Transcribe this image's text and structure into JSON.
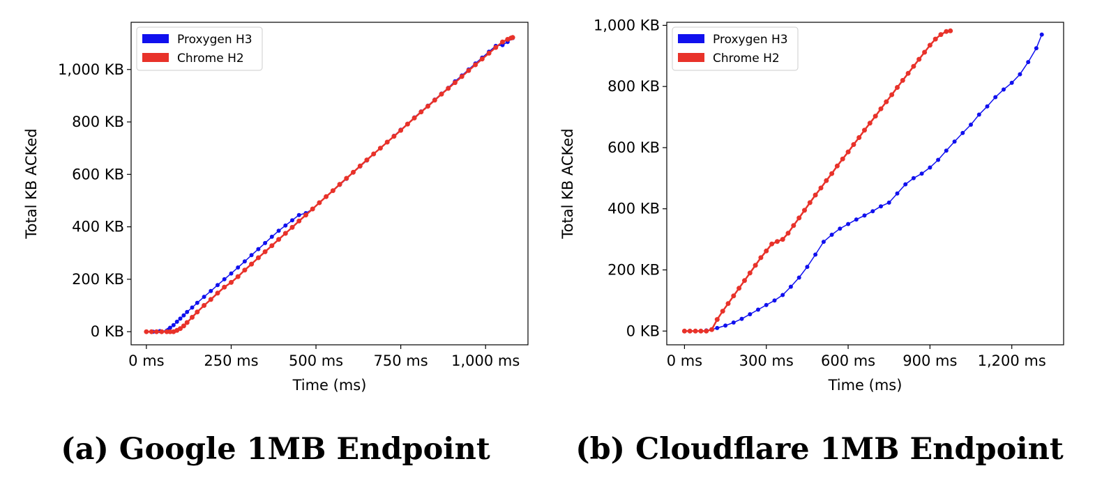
{
  "captions": {
    "a": "(a) Google 1MB Endpoint",
    "b": "(b) Cloudflare 1MB Endpoint"
  },
  "colors": {
    "h3": "#1010ee",
    "h2": "#e8322a"
  },
  "chart_data": [
    {
      "type": "scatter",
      "title": "",
      "xlabel": "Time (ms)",
      "ylabel": "Total KB ACKed",
      "xlim": [
        -45,
        1125
      ],
      "ylim": [
        -50,
        1180
      ],
      "xticks": [
        0,
        250,
        500,
        750,
        1000
      ],
      "xtick_labels": [
        "0 ms",
        "250 ms",
        "500 ms",
        "750 ms",
        "1,000 ms"
      ],
      "yticks": [
        0,
        200,
        400,
        600,
        800,
        1000
      ],
      "ytick_labels": [
        "0 KB",
        "200 KB",
        "400 KB",
        "600 KB",
        "800 KB",
        "1,000 KB"
      ],
      "grid": false,
      "legend_position": "top-left",
      "series": [
        {
          "name": "Proxygen H3",
          "color": "#1010ee",
          "x": [
            0,
            20,
            40,
            60,
            65,
            70,
            80,
            90,
            100,
            110,
            120,
            135,
            150,
            170,
            190,
            210,
            230,
            250,
            270,
            290,
            310,
            330,
            350,
            370,
            390,
            410,
            430,
            450,
            470,
            490,
            510,
            530,
            550,
            570,
            590,
            610,
            630,
            650,
            670,
            690,
            710,
            730,
            750,
            770,
            790,
            810,
            830,
            850,
            870,
            890,
            910,
            930,
            950,
            970,
            990,
            1010,
            1030,
            1050,
            1065,
            1080
          ],
          "y": [
            0,
            0,
            2,
            4,
            8,
            15,
            25,
            38,
            50,
            62,
            75,
            92,
            110,
            133,
            155,
            178,
            200,
            222,
            245,
            268,
            292,
            315,
            338,
            362,
            385,
            405,
            425,
            445,
            452,
            468,
            492,
            515,
            538,
            560,
            583,
            607,
            630,
            653,
            677,
            700,
            723,
            747,
            770,
            793,
            817,
            840,
            862,
            885,
            908,
            930,
            955,
            977,
            1000,
            1023,
            1045,
            1068,
            1090,
            1093,
            1105,
            1120
          ]
        },
        {
          "name": "Chrome H2",
          "color": "#e8322a",
          "x": [
            0,
            15,
            30,
            45,
            60,
            70,
            80,
            90,
            100,
            110,
            120,
            135,
            150,
            170,
            190,
            210,
            230,
            250,
            270,
            290,
            310,
            330,
            350,
            370,
            390,
            410,
            430,
            450,
            470,
            490,
            510,
            530,
            550,
            570,
            590,
            610,
            630,
            650,
            670,
            690,
            710,
            730,
            750,
            770,
            790,
            810,
            830,
            850,
            870,
            890,
            910,
            930,
            950,
            970,
            990,
            1010,
            1030,
            1050,
            1065,
            1075,
            1080
          ],
          "y": [
            0,
            0,
            0,
            0,
            0,
            0,
            0,
            5,
            12,
            22,
            35,
            55,
            75,
            100,
            123,
            147,
            170,
            188,
            210,
            235,
            258,
            282,
            305,
            328,
            352,
            375,
            398,
            422,
            445,
            468,
            492,
            515,
            538,
            562,
            585,
            608,
            632,
            655,
            678,
            700,
            723,
            745,
            768,
            792,
            815,
            838,
            860,
            883,
            906,
            928,
            950,
            973,
            996,
            1018,
            1040,
            1062,
            1084,
            1105,
            1115,
            1120,
            1122
          ]
        }
      ]
    },
    {
      "type": "scatter",
      "title": "",
      "xlabel": "Time (ms)",
      "ylabel": "Total KB ACKed",
      "xlim": [
        -65,
        1390
      ],
      "ylim": [
        -45,
        1010
      ],
      "xticks": [
        0,
        300,
        600,
        900,
        1200
      ],
      "xtick_labels": [
        "0 ms",
        "300 ms",
        "600 ms",
        "900 ms",
        "1,200 ms"
      ],
      "yticks": [
        0,
        200,
        400,
        600,
        800,
        1000
      ],
      "ytick_labels": [
        "0 KB",
        "200 KB",
        "400 KB",
        "600 KB",
        "800 KB",
        "1,000 KB"
      ],
      "grid": false,
      "legend_position": "top-left",
      "series": [
        {
          "name": "Proxygen H3",
          "color": "#1010ee",
          "x": [
            0,
            20,
            40,
            60,
            80,
            100,
            120,
            150,
            180,
            210,
            240,
            270,
            300,
            330,
            360,
            390,
            420,
            450,
            480,
            510,
            540,
            570,
            600,
            630,
            660,
            690,
            720,
            750,
            780,
            810,
            840,
            870,
            900,
            930,
            960,
            990,
            1020,
            1050,
            1080,
            1110,
            1140,
            1170,
            1200,
            1230,
            1260,
            1290,
            1310
          ],
          "y": [
            0,
            0,
            0,
            0,
            2,
            5,
            10,
            18,
            28,
            40,
            55,
            70,
            85,
            100,
            118,
            145,
            175,
            210,
            250,
            292,
            315,
            335,
            350,
            365,
            378,
            392,
            408,
            420,
            450,
            480,
            500,
            515,
            535,
            560,
            590,
            620,
            648,
            675,
            708,
            735,
            765,
            790,
            812,
            840,
            880,
            925,
            970
          ]
        },
        {
          "name": "Chrome H2",
          "color": "#e8322a",
          "x": [
            0,
            20,
            40,
            60,
            80,
            100,
            120,
            140,
            160,
            180,
            200,
            220,
            240,
            260,
            280,
            300,
            320,
            340,
            360,
            380,
            400,
            420,
            440,
            460,
            480,
            500,
            520,
            540,
            560,
            580,
            600,
            620,
            640,
            660,
            680,
            700,
            720,
            740,
            760,
            780,
            800,
            820,
            840,
            860,
            880,
            900,
            920,
            940,
            960,
            975
          ],
          "y": [
            0,
            0,
            0,
            0,
            0,
            5,
            38,
            65,
            90,
            115,
            140,
            165,
            190,
            215,
            240,
            262,
            285,
            293,
            300,
            320,
            345,
            370,
            395,
            420,
            445,
            468,
            492,
            515,
            540,
            563,
            586,
            610,
            633,
            657,
            680,
            703,
            727,
            750,
            773,
            797,
            820,
            843,
            866,
            889,
            912,
            935,
            955,
            970,
            980,
            982
          ]
        }
      ]
    }
  ]
}
